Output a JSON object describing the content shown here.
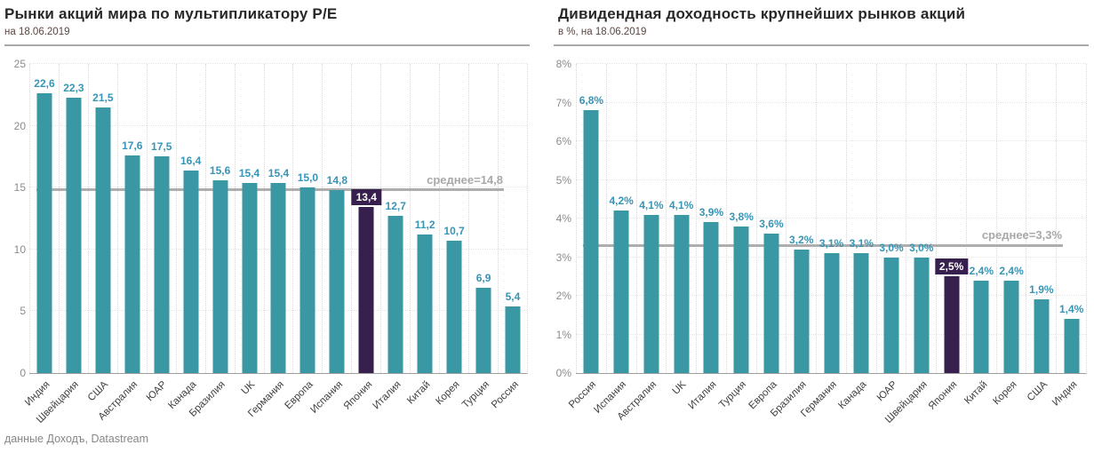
{
  "footer": {
    "source": "данные Доходъ, Datastream"
  },
  "colors": {
    "bar": "#3a98a4",
    "bar_highlight": "#371f4e",
    "value_label": "#3795b5",
    "value_label_highlight_bg": "#371f4e",
    "value_label_highlight_text": "#ffffff",
    "average_line": "#aeaeae",
    "average_text": "#a8a8a8"
  },
  "chart_data": [
    {
      "type": "bar",
      "title": "Рынки акций мира по мультипликатору  P/E",
      "subtitle": "на 18.06.2019",
      "categories": [
        "Индия",
        "Швейцария",
        "США",
        "Австралия",
        "ЮАР",
        "Канада",
        "Бразилия",
        "UK",
        "Германия",
        "Европа",
        "Испания",
        "Япония",
        "Италия",
        "Китай",
        "Корея",
        "Турция",
        "Россия"
      ],
      "values": [
        22.6,
        22.3,
        21.5,
        17.6,
        17.5,
        16.4,
        15.6,
        15.4,
        15.4,
        15.0,
        14.8,
        13.4,
        12.7,
        11.2,
        10.7,
        6.9,
        5.4
      ],
      "value_labels": [
        "22,6",
        "22,3",
        "21,5",
        "17,6",
        "17,5",
        "16,4",
        "15,6",
        "15,4",
        "15,4",
        "15,0",
        "14,8",
        "13,4",
        "12,7",
        "11,2",
        "10,7",
        "6,9",
        "5,4"
      ],
      "highlight_index": 11,
      "highlight_category": "Япония",
      "average": 14.8,
      "average_label": "среднее=14,8",
      "ylim": [
        0,
        25
      ],
      "yticks": [
        0,
        5,
        10,
        15,
        20,
        25
      ],
      "ytick_labels": [
        "0",
        "5",
        "10",
        "15",
        "20",
        "25"
      ],
      "grid": true,
      "legend": false
    },
    {
      "type": "bar",
      "title": "Дивидендная доходность  крупнейших рынков  акций",
      "subtitle": "в %, на 18.06.2019",
      "categories": [
        "Россия",
        "Испания",
        "Австралия",
        "UK",
        "Италия",
        "Турция",
        "Европа",
        "Бразилия",
        "Германия",
        "Канада",
        "ЮАР",
        "Швейцария",
        "Япония",
        "Китай",
        "Корея",
        "США",
        "Индия"
      ],
      "values": [
        6.8,
        4.2,
        4.1,
        4.1,
        3.9,
        3.8,
        3.6,
        3.2,
        3.1,
        3.1,
        3.0,
        3.0,
        2.5,
        2.4,
        2.4,
        1.9,
        1.4
      ],
      "value_labels": [
        "6,8%",
        "4,2%",
        "4,1%",
        "4,1%",
        "3,9%",
        "3,8%",
        "3,6%",
        "3,2%",
        "3,1%",
        "3,1%",
        "3,0%",
        "3,0%",
        "2,5%",
        "2,4%",
        "2,4%",
        "1,9%",
        "1,4%"
      ],
      "highlight_index": 12,
      "highlight_category": "Япония",
      "average": 3.3,
      "average_label": "среднее=3,3%",
      "ylim": [
        0,
        8
      ],
      "yticks": [
        0,
        1,
        2,
        3,
        4,
        5,
        6,
        7,
        8
      ],
      "ytick_labels": [
        "0%",
        "1%",
        "2%",
        "3%",
        "4%",
        "5%",
        "6%",
        "7%",
        "8%"
      ],
      "grid": true,
      "legend": false
    }
  ]
}
